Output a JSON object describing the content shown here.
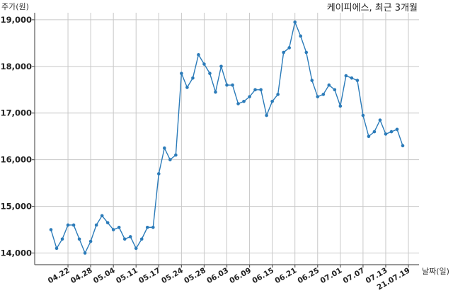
{
  "chart_data": {
    "type": "line",
    "title": "케이피에스, 최근 3개월",
    "ylabel": "주가(원)",
    "xlabel": "날짜(일)",
    "ylim": [
      13750,
      19150
    ],
    "yticks": [
      14000,
      15000,
      16000,
      17000,
      18000,
      19000
    ],
    "ytick_labels": [
      "14,000",
      "15,000",
      "16,000",
      "17,000",
      "18,000",
      "19,000"
    ],
    "xtick_labels": [
      "04.22",
      "04.28",
      "05.04",
      "05.11",
      "05.17",
      "05.24",
      "05.28",
      "06.03",
      "06.09",
      "06.15",
      "06.21",
      "06.25",
      "07.01",
      "07.07",
      "07.13",
      "21.07.19"
    ],
    "xtick_index": [
      3,
      7,
      11,
      15,
      19,
      23,
      27,
      31,
      35,
      39,
      43,
      47,
      51,
      55,
      59,
      63
    ],
    "grid": true,
    "line_color": "#2b7bb9",
    "series": [
      {
        "values": [
          14500,
          14100,
          14300,
          14600,
          14600,
          14300,
          14000,
          14250,
          14600,
          14800,
          14650,
          14500,
          14550,
          14300,
          14350,
          14100,
          14300,
          14550,
          14550,
          15700,
          16250,
          16000,
          16100,
          17850,
          17550,
          17750,
          18250,
          18050,
          17850,
          17450,
          18000,
          17600,
          17600,
          17200,
          17250,
          17350,
          17500,
          17500,
          16950,
          17250,
          17400,
          18300,
          18400,
          18950,
          18650,
          18300,
          17700,
          17350,
          17400,
          17600,
          17500,
          17150,
          17800,
          17750,
          17700,
          16950,
          16500,
          16600,
          16850,
          16550,
          16600,
          16650,
          16300
        ]
      }
    ]
  }
}
